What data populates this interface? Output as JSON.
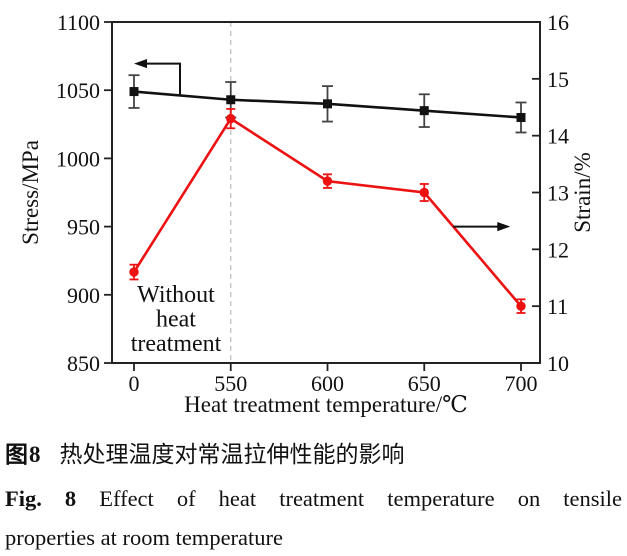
{
  "figure": {
    "captions": {
      "zh_label": "图8",
      "zh_text": "热处理温度对常温拉伸性能的影响",
      "en_label": "Fig. 8",
      "en_line1_rest": "Effect of heat treatment temperature on tensile",
      "en_line2": "properties at room temperature"
    }
  },
  "chart_data": {
    "type": "line",
    "title": "",
    "xlabel": "Heat treatment temperature/℃",
    "ylabel_left": "Stress/MPa",
    "ylabel_right": "Strain/%",
    "x_tick_labels": [
      "0",
      "550",
      "600",
      "650",
      "700"
    ],
    "ylim_left": [
      850,
      1100
    ],
    "yticks_left": [
      850,
      900,
      950,
      1000,
      1050,
      1100
    ],
    "ylim_right": [
      10,
      16
    ],
    "yticks_right": [
      10,
      11,
      12,
      13,
      14,
      15,
      16
    ],
    "grid": false,
    "legend": "none",
    "series": [
      {
        "name": "Stress",
        "axis": "left",
        "marker": "square",
        "color": "#111111",
        "error_color": "#444444",
        "values": [
          1049,
          1043,
          1040,
          1035,
          1030
        ],
        "errors": [
          12,
          13,
          13,
          12,
          11
        ]
      },
      {
        "name": "Strain",
        "axis": "right",
        "marker": "circle",
        "color": "#ec1212",
        "error_color": "#ec1212",
        "values": [
          11.6,
          14.3,
          13.2,
          13.0,
          11.0
        ],
        "errors": [
          0.13,
          0.17,
          0.12,
          0.15,
          0.12
        ]
      }
    ],
    "annotation": {
      "lines": [
        "Without",
        "heat",
        "treatment"
      ]
    },
    "reference_line": {
      "x_index": 1,
      "style": "dashed",
      "color": "#c6c6c6"
    },
    "arrows": [
      {
        "meaning": "stress-reads-left-axis",
        "dir": "left"
      },
      {
        "meaning": "strain-reads-right-axis",
        "dir": "right"
      }
    ],
    "axis_color": "#222222"
  }
}
